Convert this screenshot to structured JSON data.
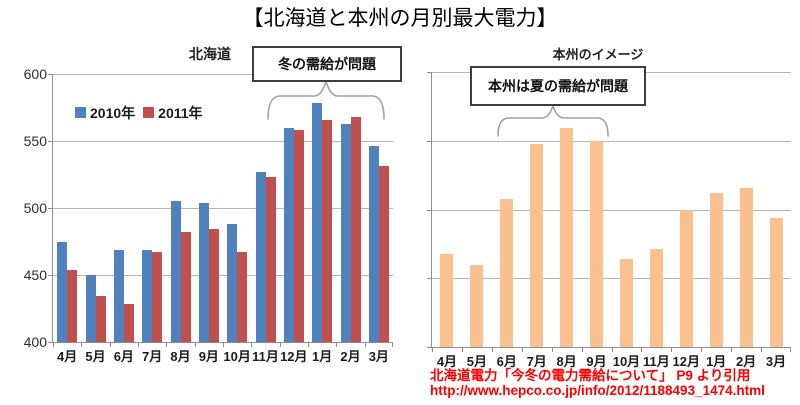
{
  "page": {
    "title": "【北海道と本州の月別最大電力】"
  },
  "citation": {
    "line1": "北海道電力「今冬の電力需給について」 P9 より引用",
    "line2": "http://www.hepco.co.jp/info/2012/1188493_1474.html",
    "color": "#FF0000"
  },
  "chart_data": [
    {
      "type": "bar",
      "title": "北海道",
      "categories": [
        "4月",
        "5月",
        "6月",
        "7月",
        "8月",
        "9月",
        "10月",
        "11月",
        "12月",
        "1月",
        "2月",
        "3月"
      ],
      "series": [
        {
          "name": "2010年",
          "color": "#4F81BD",
          "values": [
            475,
            450,
            469,
            469,
            505,
            504,
            488,
            527,
            560,
            578,
            563,
            546
          ]
        },
        {
          "name": "2011年",
          "color": "#C0504D",
          "values": [
            454,
            434,
            428,
            467,
            482,
            484,
            467,
            523,
            558,
            566,
            568,
            531
          ]
        }
      ],
      "ylim": [
        400,
        600
      ],
      "yticks": [
        400,
        450,
        500,
        550,
        600
      ],
      "grid": true,
      "legend_position": "inside-top-left",
      "annotation": "冬の需給が問題",
      "annotation_span_months": [
        "11月",
        "12月",
        "1月",
        "2月",
        "3月"
      ]
    },
    {
      "type": "bar",
      "title": "本州のイメージ",
      "categories": [
        "4月",
        "5月",
        "6月",
        "7月",
        "8月",
        "9月",
        "10月",
        "11月",
        "12月",
        "1月",
        "2月",
        "3月"
      ],
      "series": [
        {
          "name": "本州",
          "color": "#FAC090",
          "values": [
            468,
            460,
            508,
            548,
            559,
            550,
            464,
            471,
            500,
            512,
            516,
            494
          ]
        }
      ],
      "ylim": [
        400,
        600
      ],
      "yticks": [
        400,
        450,
        500,
        550,
        600
      ],
      "grid": true,
      "y_labels_shown": false,
      "annotation": "本州は夏の需給が問題",
      "annotation_span_months": [
        "6月",
        "7月",
        "8月",
        "9月"
      ]
    }
  ]
}
